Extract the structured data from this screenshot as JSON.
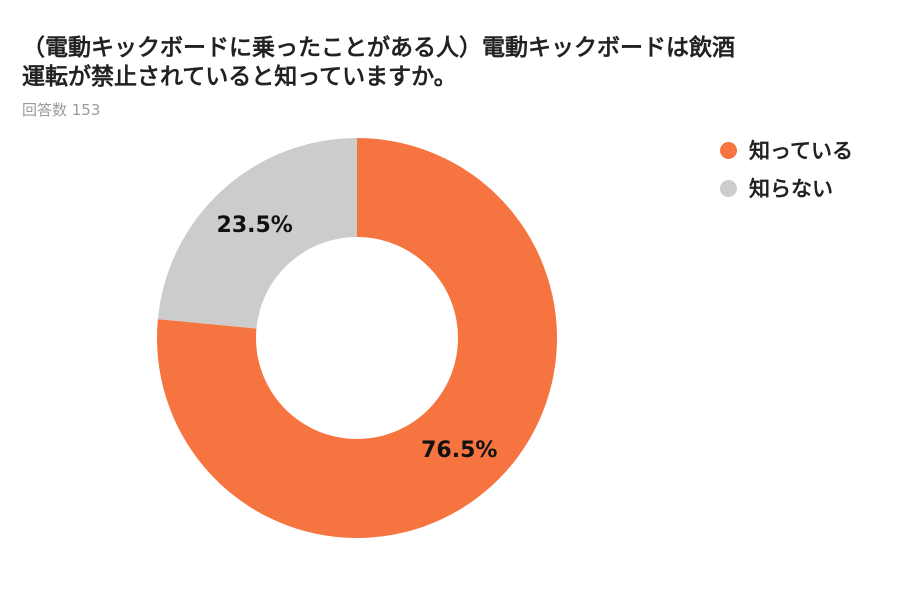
{
  "title_lines": [
    "（電動キックボードに乗ったことがある人）電動キックボードは飲酒",
    "運転が禁止されていると知っていますか。"
  ],
  "subtitle": "回答数 153",
  "chart_data": {
    "type": "pie",
    "donut": true,
    "title": "（電動キックボードに乗ったことがある人）電動キックボードは飲酒運転が禁止されていると知っていますか。",
    "subtitle": "回答数 153",
    "legend_position": "right",
    "slices": [
      {
        "label": "知っている",
        "value": 76.5,
        "display": "76.5%",
        "color": "#F5743F"
      },
      {
        "label": "知らない",
        "value": 23.5,
        "display": "23.5%",
        "color": "#CCCCCC"
      }
    ]
  }
}
